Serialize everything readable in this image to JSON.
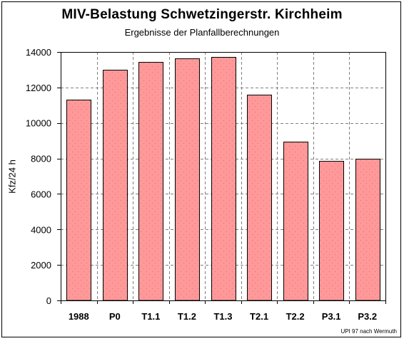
{
  "chart_data": {
    "type": "bar",
    "title": "MIV-Belastung Schwetzingerstr. Kirchheim",
    "subtitle": "Ergebnisse der Planfallberechnungen",
    "ylabel": "Kfz/24 h",
    "xlabel": "",
    "categories": [
      "1988",
      "P0",
      "T1.1",
      "T1.2",
      "T1.3",
      "T2.1",
      "T2.2",
      "P3.1",
      "P3.2"
    ],
    "values": [
      11300,
      13000,
      13450,
      13650,
      13700,
      11600,
      8950,
      7850,
      8000
    ],
    "ylim": [
      0,
      14000
    ],
    "yticks": [
      0,
      2000,
      4000,
      6000,
      8000,
      10000,
      12000,
      14000
    ],
    "ytick_labels": [
      "0",
      "2000",
      "4000",
      "6000",
      "8000",
      "10000",
      "12000",
      "14000"
    ],
    "grid": true,
    "grid_style": "dashed",
    "legend": "none",
    "colors": {
      "bar_fill": "#ff9999",
      "bar_stroke": "#000000",
      "bar_dots": "#e07070",
      "grid": "#808080",
      "axis": "#000000",
      "text": "#000000",
      "background": "#ffffff"
    }
  },
  "footnote": "UPI 97 nach Wermuth"
}
